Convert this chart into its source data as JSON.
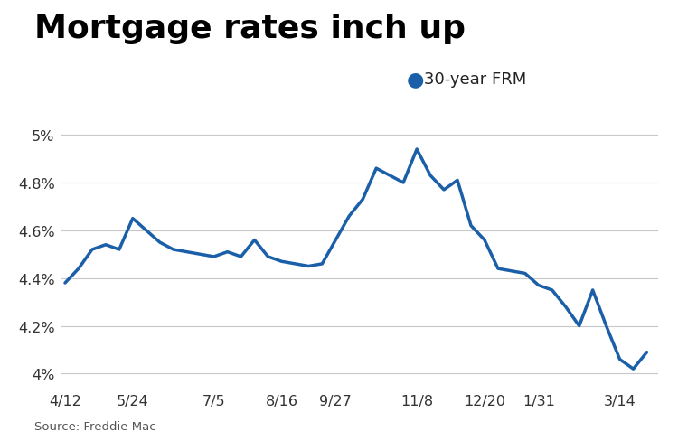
{
  "title": "Mortgage rates inch up",
  "legend_label": "30-year FRM",
  "source": "Source: Freddie Mac",
  "line_color": "#1a5fa8",
  "background_color": "#ffffff",
  "x_labels": [
    "4/12",
    "5/24",
    "7/5",
    "8/16",
    "9/27",
    "11/8",
    "12/20",
    "1/31",
    "3/14"
  ],
  "y_ticks": [
    4.0,
    4.2,
    4.4,
    4.6,
    4.8,
    5.0
  ],
  "y_tick_labels": [
    "4%",
    "4.2%",
    "4.4%",
    "4.6%",
    "4.8%",
    "5%"
  ],
  "ylim": [
    3.94,
    5.05
  ],
  "x_values": [
    0,
    1,
    2,
    3,
    4,
    5,
    6,
    7,
    8,
    9,
    10,
    11,
    12,
    13,
    14,
    15,
    16,
    17,
    18,
    19,
    20,
    21,
    22,
    23,
    24,
    25,
    26,
    27,
    28,
    29,
    30,
    31,
    32,
    33,
    34,
    35,
    36,
    37,
    38,
    39,
    40,
    41,
    42,
    43
  ],
  "y_values": [
    4.38,
    4.44,
    4.52,
    4.54,
    4.52,
    4.65,
    4.6,
    4.55,
    4.52,
    4.51,
    4.5,
    4.49,
    4.51,
    4.49,
    4.56,
    4.49,
    4.47,
    4.46,
    4.45,
    4.46,
    4.56,
    4.66,
    4.73,
    4.86,
    4.83,
    4.8,
    4.94,
    4.83,
    4.77,
    4.81,
    4.62,
    4.56,
    4.44,
    4.43,
    4.42,
    4.37,
    4.35,
    4.28,
    4.2,
    4.35,
    4.2,
    4.06,
    4.02,
    4.09
  ],
  "x_tick_positions": [
    0,
    5,
    11,
    16,
    20,
    26,
    31,
    35,
    41
  ],
  "line_width": 2.5,
  "title_fontsize": 26,
  "axis_fontsize": 11.5,
  "legend_fontsize": 13
}
